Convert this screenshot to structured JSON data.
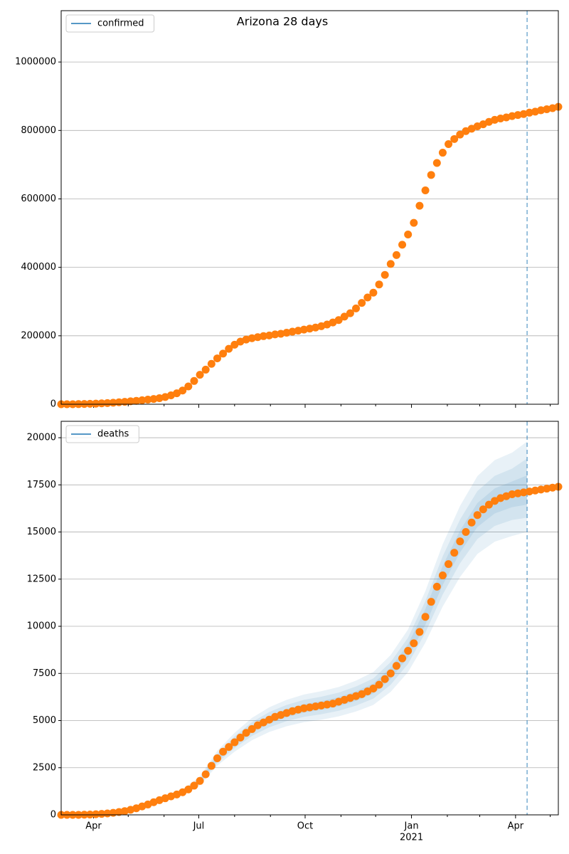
{
  "chart_data": [
    {
      "type": "scatter",
      "title": "Arizona 28 days",
      "legend": [
        {
          "label": "confirmed",
          "color": "#1f77b4"
        }
      ],
      "legend_loc": "upper left",
      "x": [
        0,
        5,
        10,
        15,
        20,
        25,
        30,
        35,
        40,
        45,
        50,
        55,
        60,
        65,
        70,
        75,
        80,
        85,
        90,
        95,
        100,
        105,
        110,
        115,
        120,
        125,
        130,
        135,
        140,
        145,
        150,
        155,
        160,
        165,
        170,
        175,
        180,
        185,
        190,
        195,
        200,
        205,
        210,
        215,
        220,
        225,
        230,
        235,
        240,
        245,
        250,
        255,
        260,
        265,
        270,
        275,
        280,
        285,
        290,
        295,
        300,
        305,
        310,
        315,
        320,
        325,
        330,
        335,
        340,
        345,
        350,
        355,
        360,
        365,
        370,
        375,
        380,
        385,
        390,
        395,
        400,
        405,
        410,
        415,
        420,
        425,
        430
      ],
      "values": [
        9,
        20,
        120,
        400,
        800,
        1200,
        1700,
        2500,
        3500,
        4500,
        5800,
        7000,
        8600,
        10000,
        11700,
        13500,
        15300,
        17800,
        21000,
        26000,
        32000,
        40000,
        52000,
        68000,
        86000,
        101000,
        118000,
        134000,
        148000,
        162000,
        174000,
        183000,
        189000,
        193000,
        196000,
        199000,
        201000,
        204000,
        206000,
        209000,
        212000,
        215000,
        218000,
        221000,
        224000,
        228000,
        233000,
        239000,
        246000,
        256000,
        266000,
        280000,
        296000,
        312000,
        326000,
        350000,
        378000,
        410000,
        436000,
        466000,
        496000,
        530000,
        580000,
        625000,
        670000,
        705000,
        735000,
        760000,
        775000,
        788000,
        798000,
        805000,
        812000,
        818000,
        825000,
        831000,
        835000,
        838000,
        842000,
        845000,
        848000,
        852000,
        855000,
        859000,
        862000,
        865000,
        869000
      ],
      "color": "#ff7f0e",
      "xlim": [
        0,
        430
      ],
      "xticks": [
        28,
        119,
        211,
        303,
        393
      ],
      "xminorticks": [
        58,
        89,
        150,
        181,
        242,
        272,
        334,
        362,
        423
      ],
      "ylim": [
        0,
        1150000
      ],
      "yticks": [
        0,
        200000,
        400000,
        600000,
        800000,
        1000000
      ],
      "grid": true,
      "vline": 403,
      "vline_color": "#1f77b4"
    },
    {
      "type": "scatter",
      "legend": [
        {
          "label": "deaths",
          "color": "#1f77b4"
        }
      ],
      "legend_loc": "upper left",
      "x": [
        0,
        5,
        10,
        15,
        20,
        25,
        30,
        35,
        40,
        45,
        50,
        55,
        60,
        65,
        70,
        75,
        80,
        85,
        90,
        95,
        100,
        105,
        110,
        115,
        120,
        125,
        130,
        135,
        140,
        145,
        150,
        155,
        160,
        165,
        170,
        175,
        180,
        185,
        190,
        195,
        200,
        205,
        210,
        215,
        220,
        225,
        230,
        235,
        240,
        245,
        250,
        255,
        260,
        265,
        270,
        275,
        280,
        285,
        290,
        295,
        300,
        305,
        310,
        315,
        320,
        325,
        330,
        335,
        340,
        345,
        350,
        355,
        360,
        365,
        370,
        375,
        380,
        385,
        390,
        395,
        400,
        405,
        410,
        415,
        420,
        425,
        430
      ],
      "values": [
        0,
        0,
        0,
        2,
        8,
        17,
        32,
        52,
        77,
        110,
        150,
        200,
        270,
        350,
        450,
        550,
        670,
        780,
        880,
        980,
        1080,
        1200,
        1350,
        1550,
        1800,
        2150,
        2600,
        3000,
        3350,
        3600,
        3850,
        4100,
        4350,
        4550,
        4750,
        4900,
        5050,
        5200,
        5300,
        5400,
        5500,
        5580,
        5650,
        5700,
        5750,
        5800,
        5850,
        5900,
        6000,
        6100,
        6200,
        6300,
        6400,
        6550,
        6700,
        6900,
        7200,
        7500,
        7900,
        8300,
        8700,
        9100,
        9700,
        10500,
        11300,
        12100,
        12700,
        13300,
        13900,
        14500,
        15000,
        15500,
        15900,
        16200,
        16450,
        16650,
        16800,
        16900,
        17000,
        17050,
        17100,
        17150,
        17200,
        17250,
        17300,
        17350,
        17400
      ],
      "color": "#ff7f0e",
      "bands_x": [
        105,
        120,
        135,
        150,
        165,
        180,
        195,
        210,
        225,
        240,
        255,
        270,
        285,
        300,
        315,
        330,
        345,
        360,
        375,
        390,
        403
      ],
      "bands_color": "#1f77b4",
      "bands": [
        {
          "lower": [
            1045,
            1565,
            2610,
            3350,
            3960,
            4395,
            4700,
            4915,
            5045,
            5220,
            5480,
            5830,
            6525,
            7570,
            9135,
            11050,
            12615,
            13835,
            14485,
            14790,
            15000
          ],
          "upper": [
            1355,
            2035,
            3390,
            4350,
            5140,
            5705,
            6100,
            6385,
            6555,
            6780,
            7120,
            7570,
            8475,
            9830,
            11865,
            14350,
            16385,
            17965,
            18815,
            19210,
            19800
          ]
        },
        {
          "lower": [
            1105,
            1655,
            2760,
            3540,
            4185,
            4645,
            4970,
            5200,
            5335,
            5520,
            5795,
            6165,
            6900,
            8005,
            9660,
            11685,
            13340,
            14630,
            15320,
            15640,
            15760
          ],
          "upper": [
            1295,
            1945,
            3240,
            4160,
            4915,
            5455,
            5830,
            6100,
            6265,
            6480,
            6805,
            7235,
            8100,
            9395,
            11340,
            13715,
            15660,
            17170,
            17980,
            18360,
            18900
          ]
        },
        {
          "lower": [
            1150,
            1730,
            2880,
            3695,
            4370,
            4850,
            5185,
            5425,
            5570,
            5760,
            6050,
            6430,
            7200,
            8350,
            10080,
            12190,
            13920,
            15265,
            15985,
            16320,
            16450
          ],
          "upper": [
            1250,
            1870,
            3120,
            4005,
            4730,
            5250,
            5615,
            5875,
            6030,
            6240,
            6550,
            6970,
            7800,
            9050,
            10920,
            13210,
            15080,
            16535,
            17315,
            17680,
            18000
          ]
        }
      ],
      "xlim": [
        0,
        430
      ],
      "xticks": [
        {
          "value": 28,
          "label": "Apr"
        },
        {
          "value": 119,
          "label": "Jul"
        },
        {
          "value": 211,
          "label": "Oct"
        },
        {
          "value": 303,
          "label": "Jan"
        },
        {
          "value": 393,
          "label": "Apr"
        }
      ],
      "xtick_sublabels": [
        {
          "value": 303,
          "label": "2021"
        }
      ],
      "xminorticks": [
        58,
        89,
        150,
        181,
        242,
        272,
        334,
        362,
        423
      ],
      "ylim": [
        0,
        20870
      ],
      "yticks": [
        0,
        2500,
        5000,
        7500,
        10000,
        12500,
        15000,
        17500,
        20000
      ],
      "grid": true,
      "vline": 403,
      "vline_color": "#1f77b4"
    }
  ]
}
